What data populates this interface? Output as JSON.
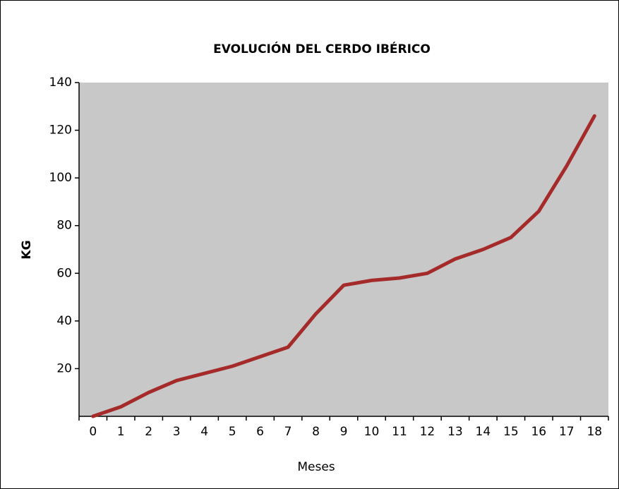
{
  "chart_data": {
    "type": "line",
    "title": "EVOLUCIÓN DEL CERDO IBÉRICO",
    "x_label": "Meses",
    "y_label": "KG",
    "categories": [
      "0",
      "1",
      "2",
      "3",
      "4",
      "5",
      "6",
      "7",
      "8",
      "9",
      "10",
      "11",
      "12",
      "13",
      "14",
      "15",
      "16",
      "17",
      "18"
    ],
    "values": [
      0,
      4,
      10,
      15,
      18,
      21,
      25,
      29,
      43,
      55,
      57,
      58,
      60,
      66,
      70,
      75,
      86,
      105,
      126
    ],
    "color": "#a52a2a",
    "ylim": [
      0,
      140
    ],
    "yticks": [
      20,
      40,
      60,
      80,
      100,
      120,
      140
    ],
    "grid": false
  }
}
